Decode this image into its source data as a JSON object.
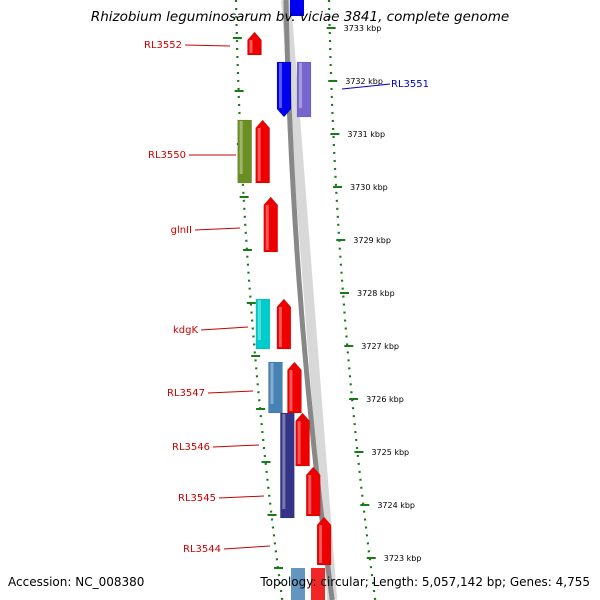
{
  "title": "Rhizobium leguminosarum bv. viciae 3841, complete genome",
  "footer": {
    "accession": "Accession: NC_008380",
    "summary": "Topology: circular; Length: 5,057,142 bp; Genes: 4,755"
  },
  "colors": {
    "label_left": "#cc0000",
    "label_highlight": "#0000cc",
    "tick": "#1a7a1a",
    "backbone": "#888888"
  },
  "scale_ticks": [
    {
      "kbp": 3733,
      "label": "3733 kbp"
    },
    {
      "kbp": 3732,
      "label": "3732 kbp"
    },
    {
      "kbp": 3731,
      "label": "3731 kbp"
    },
    {
      "kbp": 3730,
      "label": "3730 kbp"
    },
    {
      "kbp": 3729,
      "label": "3729 kbp"
    },
    {
      "kbp": 3728,
      "label": "3728 kbp"
    },
    {
      "kbp": 3727,
      "label": "3727 kbp"
    },
    {
      "kbp": 3726,
      "label": "3726 kbp"
    },
    {
      "kbp": 3725,
      "label": "3725 kbp"
    },
    {
      "kbp": 3724,
      "label": "3724 kbp"
    },
    {
      "kbp": 3723,
      "label": "3723 kbp"
    }
  ],
  "gene_labels": [
    {
      "name": "RL3552",
      "side": "left"
    },
    {
      "name": "RL3551",
      "side": "right"
    },
    {
      "name": "RL3550",
      "side": "left"
    },
    {
      "name": "glnII",
      "side": "left"
    },
    {
      "name": "kdgK",
      "side": "left"
    },
    {
      "name": "RL3547",
      "side": "left"
    },
    {
      "name": "RL3546",
      "side": "left"
    },
    {
      "name": "RL3545",
      "side": "left"
    },
    {
      "name": "RL3544",
      "side": "left"
    }
  ],
  "features": [
    {
      "gene": "RL3552",
      "color": "#ee0000",
      "dir": "up",
      "track": "plus"
    },
    {
      "gene": "RL3551",
      "color": "#0000ee",
      "dir": "down",
      "track": "plus"
    },
    {
      "gene": "RL3551",
      "color": "#7766cc",
      "dir": "none",
      "track": "plus-outer"
    },
    {
      "gene": "RL3550",
      "color": "#6b8e23",
      "dir": "none",
      "track": "cds"
    },
    {
      "gene": "RL3550",
      "color": "#ee0000",
      "dir": "up",
      "track": "plus"
    },
    {
      "gene": "glnII",
      "color": "#ee0000",
      "dir": "up",
      "track": "plus"
    },
    {
      "gene": "kdgK",
      "color": "#00cccc",
      "dir": "none",
      "track": "cds"
    },
    {
      "gene": "kdgK",
      "color": "#ee0000",
      "dir": "up",
      "track": "plus"
    },
    {
      "gene": "RL3547",
      "color": "#4682b4",
      "dir": "none",
      "track": "cds"
    },
    {
      "gene": "RL3547",
      "color": "#ee0000",
      "dir": "up",
      "track": "plus"
    },
    {
      "gene": "RL3546",
      "color": "#333388",
      "dir": "none",
      "track": "cds"
    },
    {
      "gene": "RL3546",
      "color": "#ee0000",
      "dir": "up",
      "track": "plus"
    },
    {
      "gene": "RL3545",
      "color": "#ee0000",
      "dir": "up",
      "track": "plus"
    },
    {
      "gene": "RL3544",
      "color": "#ee0000",
      "dir": "up",
      "track": "plus"
    }
  ]
}
